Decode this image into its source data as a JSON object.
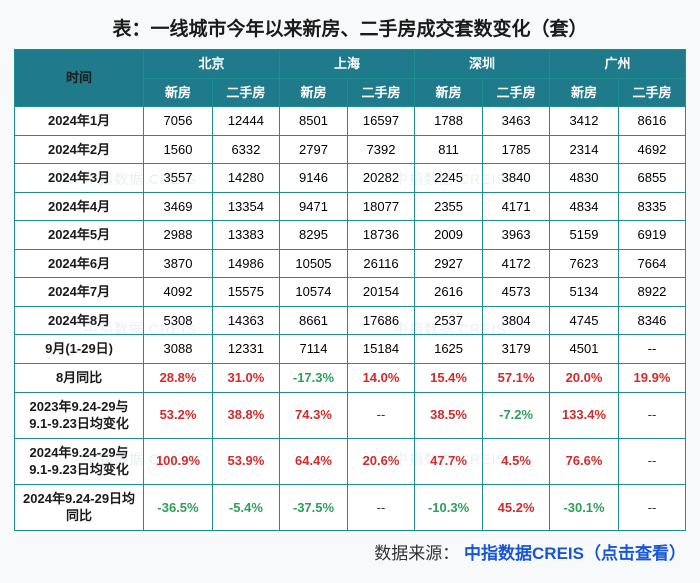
{
  "title": "表：一线城市今年以来新房、二手房成交套数变化（套）",
  "source_prefix": "数据来源：",
  "source_link": "中指数据CREIS（点击查看）",
  "header": {
    "time_label": "时间",
    "cities": [
      "北京",
      "上海",
      "深圳",
      "广州"
    ],
    "sub_labels": [
      "新房",
      "二手房"
    ]
  },
  "rows": [
    {
      "label": "2024年1月",
      "cells": [
        "7056",
        "12444",
        "8501",
        "16597",
        "1788",
        "3463",
        "3412",
        "8616"
      ]
    },
    {
      "label": "2024年2月",
      "cells": [
        "1560",
        "6332",
        "2797",
        "7392",
        "811",
        "1785",
        "2314",
        "4692"
      ]
    },
    {
      "label": "2024年3月",
      "cells": [
        "3557",
        "14280",
        "9146",
        "20282",
        "2245",
        "3840",
        "4830",
        "6855"
      ]
    },
    {
      "label": "2024年4月",
      "cells": [
        "3469",
        "13354",
        "9471",
        "18077",
        "2355",
        "4171",
        "4834",
        "8335"
      ]
    },
    {
      "label": "2024年5月",
      "cells": [
        "2988",
        "13383",
        "8295",
        "18736",
        "2009",
        "3963",
        "5159",
        "6919"
      ]
    },
    {
      "label": "2024年6月",
      "cells": [
        "3870",
        "14986",
        "10505",
        "26116",
        "2927",
        "4172",
        "7623",
        "7664"
      ]
    },
    {
      "label": "2024年7月",
      "cells": [
        "4092",
        "15575",
        "10574",
        "20154",
        "2616",
        "4573",
        "5134",
        "8922"
      ]
    },
    {
      "label": "2024年8月",
      "cells": [
        "5308",
        "14363",
        "8661",
        "17686",
        "2537",
        "3804",
        "4745",
        "8346"
      ]
    },
    {
      "label": "9月(1-29日)",
      "cells": [
        "3088",
        "12331",
        "7114",
        "15184",
        "1625",
        "3179",
        "4501",
        "--"
      ]
    }
  ],
  "pct_rows": [
    {
      "label": "8月同比",
      "cells": [
        {
          "v": "28.8%",
          "s": "pos"
        },
        {
          "v": "31.0%",
          "s": "pos"
        },
        {
          "v": "-17.3%",
          "s": "neg"
        },
        {
          "v": "14.0%",
          "s": "pos"
        },
        {
          "v": "15.4%",
          "s": "pos"
        },
        {
          "v": "57.1%",
          "s": "pos"
        },
        {
          "v": "20.0%",
          "s": "pos"
        },
        {
          "v": "19.9%",
          "s": "pos"
        }
      ]
    },
    {
      "label": "2023年9.24-29与9.1-9.23日均变化",
      "cells": [
        {
          "v": "53.2%",
          "s": "pos"
        },
        {
          "v": "38.8%",
          "s": "pos"
        },
        {
          "v": "74.3%",
          "s": "pos"
        },
        {
          "v": "--",
          "s": "none"
        },
        {
          "v": "38.5%",
          "s": "pos"
        },
        {
          "v": "-7.2%",
          "s": "neg"
        },
        {
          "v": "133.4%",
          "s": "pos"
        },
        {
          "v": "--",
          "s": "none"
        }
      ]
    },
    {
      "label": "2024年9.24-29与9.1-9.23日均变化",
      "cells": [
        {
          "v": "100.9%",
          "s": "pos"
        },
        {
          "v": "53.9%",
          "s": "pos"
        },
        {
          "v": "64.4%",
          "s": "pos"
        },
        {
          "v": "20.6%",
          "s": "pos"
        },
        {
          "v": "47.7%",
          "s": "pos"
        },
        {
          "v": "4.5%",
          "s": "pos"
        },
        {
          "v": "76.6%",
          "s": "pos"
        },
        {
          "v": "--",
          "s": "none"
        }
      ]
    },
    {
      "label": "2024年9.24-29日均同比",
      "cells": [
        {
          "v": "-36.5%",
          "s": "neg"
        },
        {
          "v": "-5.4%",
          "s": "neg"
        },
        {
          "v": "-37.5%",
          "s": "neg"
        },
        {
          "v": "--",
          "s": "none"
        },
        {
          "v": "-10.3%",
          "s": "neg"
        },
        {
          "v": "45.2%",
          "s": "pos"
        },
        {
          "v": "-30.1%",
          "s": "neg"
        },
        {
          "v": "--",
          "s": "none"
        }
      ]
    }
  ],
  "watermark_text": "中指数据 CREIS",
  "colors": {
    "header_bg": "#1f7a8c",
    "header_fg": "#ffffff",
    "border": "#1a8f8f",
    "positive": "#d22b2b",
    "negative": "#2e9e5b",
    "link": "#1756d6"
  }
}
